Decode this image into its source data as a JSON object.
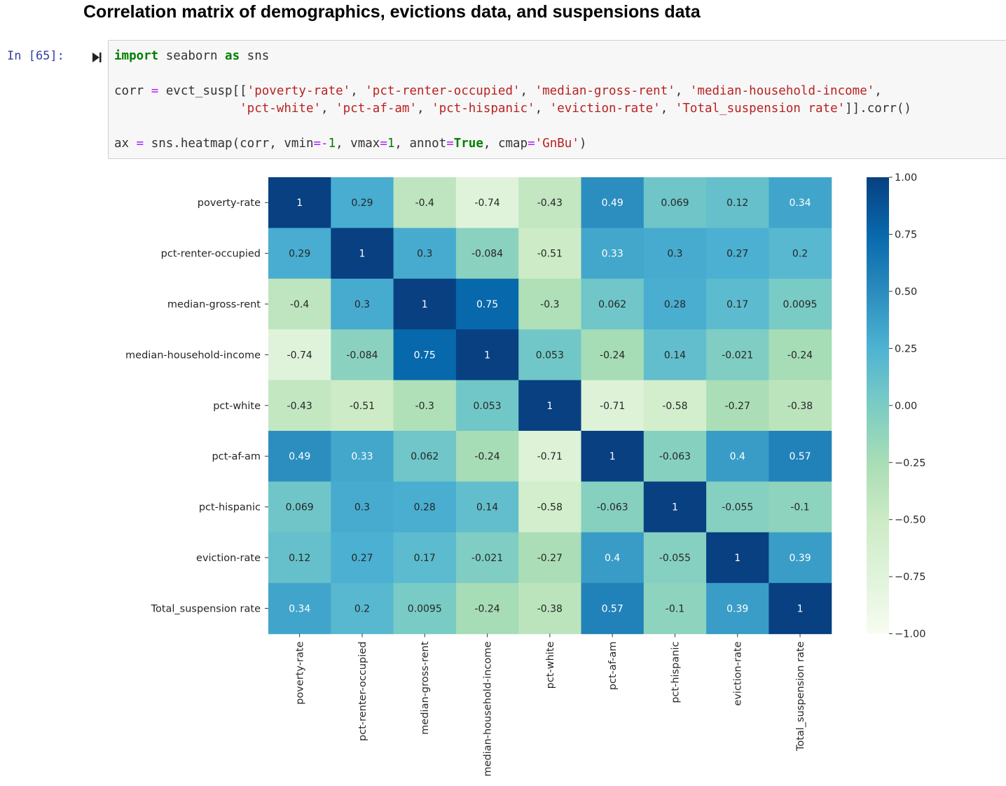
{
  "heading": "Correlation matrix of demographics, evictions data, and suspensions data",
  "cell": {
    "prompt": "In [65]:",
    "code_lines": [
      [
        {
          "t": "import",
          "c": "kw"
        },
        {
          "t": " seaborn ",
          "c": ""
        },
        {
          "t": "as",
          "c": "kw"
        },
        {
          "t": " sns",
          "c": ""
        }
      ],
      [],
      [
        {
          "t": "corr ",
          "c": ""
        },
        {
          "t": "=",
          "c": "op"
        },
        {
          "t": " evct_susp[[",
          "c": ""
        },
        {
          "t": "'poverty-rate'",
          "c": "str"
        },
        {
          "t": ", ",
          "c": ""
        },
        {
          "t": "'pct-renter-occupied'",
          "c": "str"
        },
        {
          "t": ", ",
          "c": ""
        },
        {
          "t": "'median-gross-rent'",
          "c": "str"
        },
        {
          "t": ", ",
          "c": ""
        },
        {
          "t": "'median-household-income'",
          "c": "str"
        },
        {
          "t": ",",
          "c": ""
        }
      ],
      [
        {
          "t": "                 ",
          "c": ""
        },
        {
          "t": "'pct-white'",
          "c": "str"
        },
        {
          "t": ", ",
          "c": ""
        },
        {
          "t": "'pct-af-am'",
          "c": "str"
        },
        {
          "t": ", ",
          "c": ""
        },
        {
          "t": "'pct-hispanic'",
          "c": "str"
        },
        {
          "t": ", ",
          "c": ""
        },
        {
          "t": "'eviction-rate'",
          "c": "str"
        },
        {
          "t": ", ",
          "c": ""
        },
        {
          "t": "'Total_suspension rate'",
          "c": "str"
        },
        {
          "t": "]].corr()",
          "c": ""
        }
      ],
      [],
      [
        {
          "t": "ax ",
          "c": ""
        },
        {
          "t": "=",
          "c": "op"
        },
        {
          "t": " sns.heatmap(corr, vmin",
          "c": ""
        },
        {
          "t": "=-",
          "c": "op"
        },
        {
          "t": "1",
          "c": "num"
        },
        {
          "t": ", vmax",
          "c": ""
        },
        {
          "t": "=",
          "c": "op"
        },
        {
          "t": "1",
          "c": "num"
        },
        {
          "t": ", annot",
          "c": ""
        },
        {
          "t": "=",
          "c": "op"
        },
        {
          "t": "True",
          "c": "kw"
        },
        {
          "t": ", cmap",
          "c": ""
        },
        {
          "t": "=",
          "c": "op"
        },
        {
          "t": "'GnBu'",
          "c": "str"
        },
        {
          "t": ")",
          "c": ""
        }
      ]
    ]
  },
  "chart_data": {
    "type": "heatmap",
    "labels": [
      "poverty-rate",
      "pct-renter-occupied",
      "median-gross-rent",
      "median-household-income",
      "pct-white",
      "pct-af-am",
      "pct-hispanic",
      "eviction-rate",
      "Total_suspension rate"
    ],
    "annotations": [
      [
        "1",
        "0.29",
        "-0.4",
        "-0.74",
        "-0.43",
        "0.49",
        "0.069",
        "0.12",
        "0.34"
      ],
      [
        "0.29",
        "1",
        "0.3",
        "-0.084",
        "-0.51",
        "0.33",
        "0.3",
        "0.27",
        "0.2"
      ],
      [
        "-0.4",
        "0.3",
        "1",
        "0.75",
        "-0.3",
        "0.062",
        "0.28",
        "0.17",
        "0.0095"
      ],
      [
        "-0.74",
        "-0.084",
        "0.75",
        "1",
        "0.053",
        "-0.24",
        "0.14",
        "-0.021",
        "-0.24"
      ],
      [
        "-0.43",
        "-0.51",
        "-0.3",
        "0.053",
        "1",
        "-0.71",
        "-0.58",
        "-0.27",
        "-0.38"
      ],
      [
        "0.49",
        "0.33",
        "0.062",
        "-0.24",
        "-0.71",
        "1",
        "-0.063",
        "0.4",
        "0.57"
      ],
      [
        "0.069",
        "0.3",
        "0.28",
        "0.14",
        "-0.58",
        "-0.063",
        "1",
        "-0.055",
        "-0.1"
      ],
      [
        "0.12",
        "0.27",
        "0.17",
        "-0.021",
        "-0.27",
        "0.4",
        "-0.055",
        "1",
        "0.39"
      ],
      [
        "0.34",
        "0.2",
        "0.0095",
        "-0.24",
        "-0.38",
        "0.57",
        "-0.1",
        "0.39",
        "1"
      ]
    ],
    "vmin": -1,
    "vmax": 1,
    "cmap": "GnBu",
    "colorbar_ticks": [
      "1.00",
      "0.75",
      "0.50",
      "0.25",
      "0.00",
      "−0.25",
      "−0.50",
      "−0.75",
      "−1.00"
    ]
  }
}
